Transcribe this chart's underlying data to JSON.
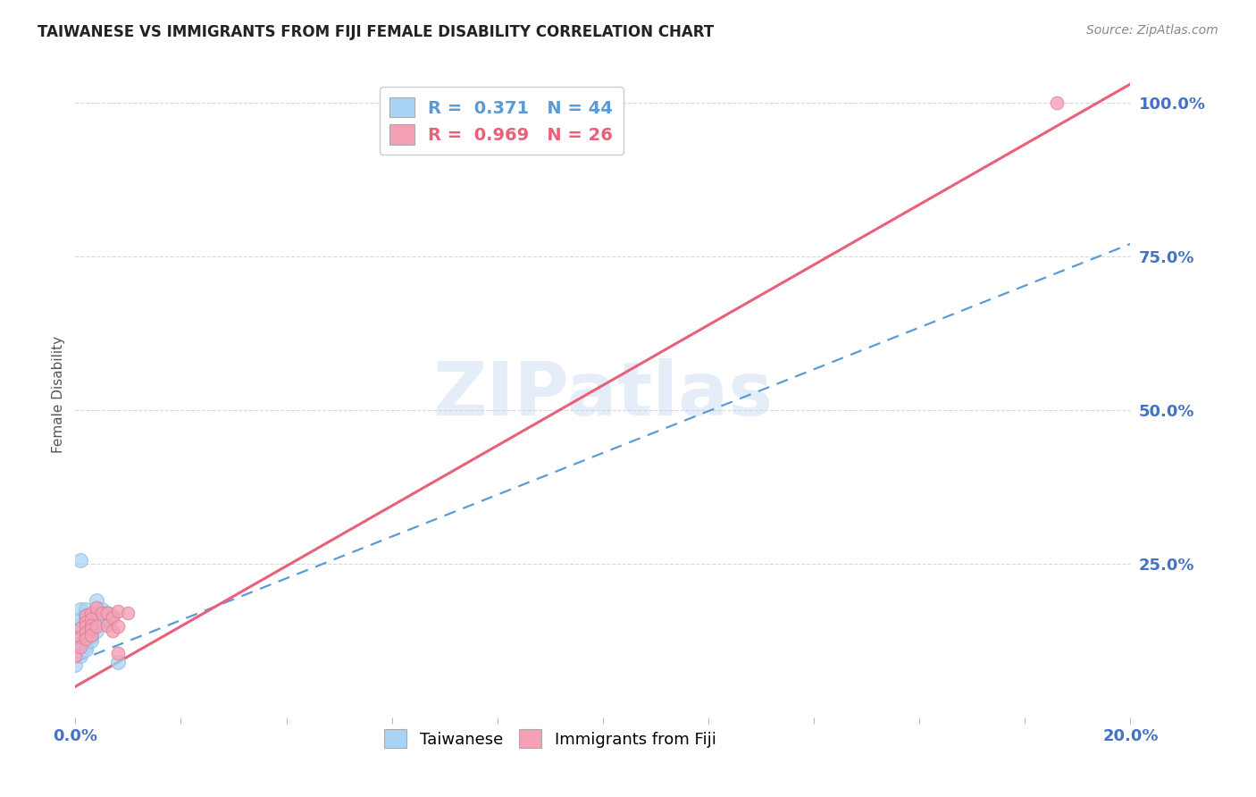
{
  "title": "TAIWANESE VS IMMIGRANTS FROM FIJI FEMALE DISABILITY CORRELATION CHART",
  "source": "Source: ZipAtlas.com",
  "ylabel": "Female Disability",
  "xlim": [
    0.0,
    0.2
  ],
  "ylim": [
    0.0,
    1.05
  ],
  "ytick_labels": [
    "",
    "25.0%",
    "50.0%",
    "75.0%",
    "100.0%"
  ],
  "ytick_vals": [
    0.0,
    0.25,
    0.5,
    0.75,
    1.0
  ],
  "xtick_vals": [
    0.0,
    0.02,
    0.04,
    0.06,
    0.08,
    0.1,
    0.12,
    0.14,
    0.16,
    0.18,
    0.2
  ],
  "legend_items": [
    {
      "label": "R =  0.371   N = 44",
      "color": "#5b9bd5"
    },
    {
      "label": "R =  0.969   N = 26",
      "color": "#e8607a"
    }
  ],
  "taiwanese_points": [
    [
      0.0,
      0.15
    ],
    [
      0.0,
      0.085
    ],
    [
      0.001,
      0.175
    ],
    [
      0.001,
      0.16
    ],
    [
      0.001,
      0.13
    ],
    [
      0.001,
      0.12
    ],
    [
      0.001,
      0.1
    ],
    [
      0.002,
      0.175
    ],
    [
      0.002,
      0.165
    ],
    [
      0.002,
      0.16
    ],
    [
      0.002,
      0.155
    ],
    [
      0.002,
      0.15
    ],
    [
      0.002,
      0.145
    ],
    [
      0.002,
      0.14
    ],
    [
      0.002,
      0.135
    ],
    [
      0.002,
      0.13
    ],
    [
      0.002,
      0.125
    ],
    [
      0.002,
      0.12
    ],
    [
      0.002,
      0.115
    ],
    [
      0.002,
      0.11
    ],
    [
      0.003,
      0.165
    ],
    [
      0.003,
      0.16
    ],
    [
      0.003,
      0.155
    ],
    [
      0.003,
      0.15
    ],
    [
      0.003,
      0.145
    ],
    [
      0.003,
      0.14
    ],
    [
      0.003,
      0.135
    ],
    [
      0.003,
      0.13
    ],
    [
      0.003,
      0.125
    ],
    [
      0.004,
      0.19
    ],
    [
      0.004,
      0.165
    ],
    [
      0.004,
      0.16
    ],
    [
      0.004,
      0.155
    ],
    [
      0.004,
      0.15
    ],
    [
      0.004,
      0.14
    ],
    [
      0.005,
      0.175
    ],
    [
      0.005,
      0.165
    ],
    [
      0.005,
      0.16
    ],
    [
      0.005,
      0.155
    ],
    [
      0.006,
      0.17
    ],
    [
      0.006,
      0.16
    ],
    [
      0.007,
      0.165
    ],
    [
      0.008,
      0.09
    ],
    [
      0.001,
      0.255
    ]
  ],
  "fiji_points": [
    [
      0.0,
      0.1
    ],
    [
      0.001,
      0.145
    ],
    [
      0.001,
      0.13
    ],
    [
      0.001,
      0.115
    ],
    [
      0.002,
      0.165
    ],
    [
      0.002,
      0.155
    ],
    [
      0.002,
      0.148
    ],
    [
      0.002,
      0.138
    ],
    [
      0.002,
      0.128
    ],
    [
      0.003,
      0.17
    ],
    [
      0.003,
      0.16
    ],
    [
      0.003,
      0.15
    ],
    [
      0.003,
      0.143
    ],
    [
      0.003,
      0.133
    ],
    [
      0.004,
      0.178
    ],
    [
      0.004,
      0.148
    ],
    [
      0.005,
      0.17
    ],
    [
      0.006,
      0.17
    ],
    [
      0.006,
      0.15
    ],
    [
      0.007,
      0.162
    ],
    [
      0.007,
      0.14
    ],
    [
      0.008,
      0.173
    ],
    [
      0.008,
      0.148
    ],
    [
      0.008,
      0.105
    ],
    [
      0.01,
      0.17
    ],
    [
      0.186,
      1.0
    ]
  ],
  "taiwanese_line_x": [
    0.0,
    0.2
  ],
  "taiwanese_line_y": [
    0.09,
    0.77
  ],
  "fiji_line_x": [
    0.0,
    0.2
  ],
  "fiji_line_y": [
    0.05,
    1.03
  ],
  "point_color_taiwanese": "#aad4f5",
  "point_color_fiji": "#f5a0b5",
  "point_edge_taiwanese": "#90b8e0",
  "point_edge_fiji": "#e08098",
  "point_size_taiwanese": 130,
  "point_size_fiji": 110,
  "tw_line_color": "#5b9bd5",
  "fj_line_color": "#e8607a",
  "watermark_text": "ZIPatlas",
  "watermark_color": "#c5d8f0",
  "watermark_alpha": 0.45,
  "background_color": "#ffffff",
  "grid_color": "#d8d8d8",
  "title_color": "#222222",
  "axis_label_color": "#555555",
  "tick_color": "#4472c4",
  "source_color": "#888888",
  "bottom_legend_labels": [
    "Taiwanese",
    "Immigrants from Fiji"
  ]
}
